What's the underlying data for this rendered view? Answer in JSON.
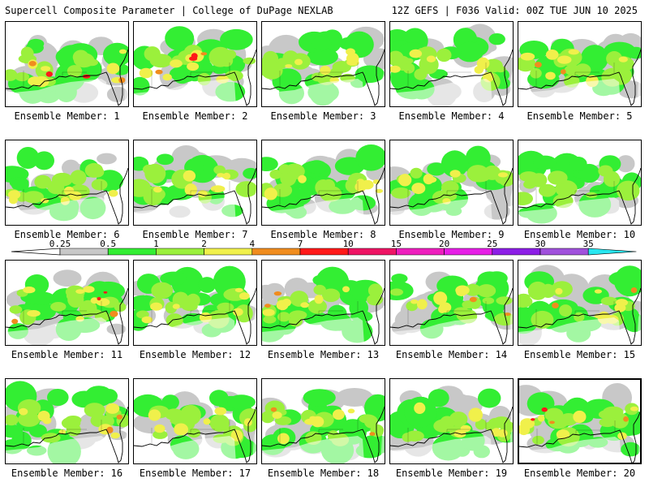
{
  "header": {
    "title_left": "Supercell Composite Parameter | College of DuPage NEXLAB",
    "title_right": "12Z GEFS | F036 Valid: 00Z TUE JUN 10 2025"
  },
  "colors": {
    "bin_0_25": "#c8c8c8",
    "bin_0_5": "#33ee33",
    "bin_1": "#9bf03c",
    "bin_2": "#f0f04b",
    "bin_4": "#f08c1e",
    "bin_7": "#ff1919",
    "bin_10": "#ee1464",
    "bin_15": "#ee1ebe",
    "bin_20": "#e61ee6",
    "bin_25": "#8c1ee6",
    "bin_30": "#a050dc",
    "bin_35": "#28e6f0",
    "coastline": "#000000",
    "background": "#ffffff"
  },
  "colorbar": {
    "labels": [
      "0.25",
      "0.5",
      "1",
      "2",
      "4",
      "7",
      "10",
      "15",
      "20",
      "25",
      "30",
      "35"
    ]
  },
  "members": [
    {
      "caption": "Ensemble Member: 1",
      "selected": false,
      "max_level": 7
    },
    {
      "caption": "Ensemble Member: 2",
      "selected": false,
      "max_level": 7
    },
    {
      "caption": "Ensemble Member: 3",
      "selected": false,
      "max_level": 2
    },
    {
      "caption": "Ensemble Member: 4",
      "selected": false,
      "max_level": 2
    },
    {
      "caption": "Ensemble Member: 5",
      "selected": false,
      "max_level": 4
    },
    {
      "caption": "Ensemble Member: 6",
      "selected": false,
      "max_level": 2
    },
    {
      "caption": "Ensemble Member: 7",
      "selected": false,
      "max_level": 2
    },
    {
      "caption": "Ensemble Member: 8",
      "selected": false,
      "max_level": 2
    },
    {
      "caption": "Ensemble Member: 9",
      "selected": false,
      "max_level": 2
    },
    {
      "caption": "Ensemble Member: 10",
      "selected": false,
      "max_level": 1
    },
    {
      "caption": "Ensemble Member: 11",
      "selected": false,
      "max_level": 7
    },
    {
      "caption": "Ensemble Member: 12",
      "selected": false,
      "max_level": 2
    },
    {
      "caption": "Ensemble Member: 13",
      "selected": false,
      "max_level": 4
    },
    {
      "caption": "Ensemble Member: 14",
      "selected": false,
      "max_level": 4
    },
    {
      "caption": "Ensemble Member: 15",
      "selected": false,
      "max_level": 4
    },
    {
      "caption": "Ensemble Member: 16",
      "selected": false,
      "max_level": 4
    },
    {
      "caption": "Ensemble Member: 17",
      "selected": false,
      "max_level": 2
    },
    {
      "caption": "Ensemble Member: 18",
      "selected": false,
      "max_level": 4
    },
    {
      "caption": "Ensemble Member: 19",
      "selected": false,
      "max_level": 2
    },
    {
      "caption": "Ensemble Member: 20",
      "selected": true,
      "max_level": 7
    }
  ]
}
